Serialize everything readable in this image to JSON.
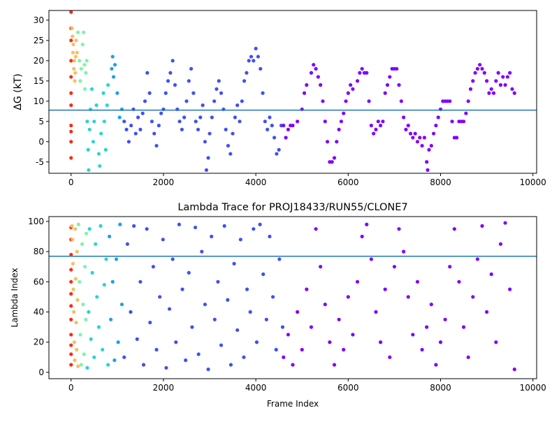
{
  "chart_data": [
    {
      "type": "scatter",
      "y_label": "ΔG (kT)",
      "xlim": [
        -480,
        10080
      ],
      "ylim": [
        -7.8,
        32.4
      ],
      "xticks": [
        0,
        2000,
        4000,
        6000,
        8000,
        10000
      ],
      "yticks": [
        -5,
        0,
        5,
        10,
        15,
        20,
        25,
        30
      ],
      "hline": {
        "value": 7.8,
        "color": "#1f77b4"
      },
      "series": [
        {
          "color": "#ff2a14",
          "x": [
            0,
            0,
            0,
            0,
            0,
            0,
            0,
            0,
            0,
            0,
            0
          ],
          "values": [
            32,
            28,
            25,
            20,
            16,
            12,
            9,
            4,
            2.5,
            0,
            -4
          ]
        },
        {
          "color": "#f5c060",
          "x": [
            20,
            30,
            40,
            50,
            60,
            70,
            80,
            90,
            100,
            110,
            130
          ],
          "values": [
            28,
            26,
            22,
            24,
            18,
            20,
            15,
            17,
            21,
            25,
            22
          ]
        },
        {
          "color": "#7ef5a8",
          "x": [
            150,
            180,
            200,
            220,
            250,
            270,
            290,
            300,
            320,
            340
          ],
          "values": [
            27,
            20,
            15,
            18,
            24,
            27,
            19,
            13,
            17,
            20
          ]
        },
        {
          "color": "#2ad4d4",
          "x": [
            350,
            370,
            380,
            400,
            420,
            450,
            480,
            500,
            550,
            600,
            620,
            650,
            700,
            720,
            750,
            780,
            800
          ],
          "values": [
            5,
            -2,
            -7,
            3,
            8,
            13,
            0,
            5,
            9,
            -3,
            -6,
            2,
            12,
            5,
            -2,
            9,
            14
          ]
        },
        {
          "color": "#1ea0e8",
          "x": [
            880,
            900,
            920,
            950,
            1000,
            1050,
            1100
          ],
          "values": [
            18,
            21,
            16,
            19,
            12,
            6,
            8
          ]
        },
        {
          "color": "#4050f5",
          "x": [
            1150,
            1200,
            1250,
            1300,
            1350,
            1400,
            1450,
            1500,
            1550,
            1600,
            1650,
            1700,
            1750,
            1800,
            1850,
            1900,
            1950,
            2000,
            2050,
            2100,
            2150,
            2200,
            2250,
            2300,
            2350,
            2400,
            2450,
            2500,
            2550,
            2600,
            2650,
            2700,
            2750,
            2800,
            2850,
            2900,
            2930,
            2970,
            3000,
            3050,
            3100,
            3150,
            3200,
            3250,
            3300,
            3350,
            3400,
            3450,
            3500,
            3550,
            3600,
            3650,
            3700,
            3750,
            3800,
            3850,
            3900,
            3950,
            4000,
            4050,
            4100,
            4150,
            4200,
            4250,
            4300,
            4350,
            4400,
            4450,
            4500,
            4550
          ],
          "values": [
            5,
            3,
            0,
            4,
            8,
            2,
            6,
            3,
            7,
            10,
            17,
            12,
            5,
            2,
            -1,
            4,
            7,
            8,
            12,
            15,
            17,
            20,
            14,
            8,
            5,
            3,
            6,
            10,
            15,
            18,
            12,
            5,
            3,
            6,
            9,
            0,
            -7,
            -4,
            2,
            6,
            10,
            13,
            15,
            12,
            8,
            3,
            -1,
            -3,
            2,
            6,
            9,
            5,
            10,
            15,
            17,
            20,
            21,
            20,
            23,
            21,
            18,
            12,
            5,
            3,
            6,
            4,
            1,
            -3,
            -2,
            4
          ]
        },
        {
          "color": "#8000ff",
          "x": [
            4600,
            4650,
            4700,
            4750,
            4800,
            4900,
            5000,
            5050,
            5100,
            5200,
            5250,
            5300,
            5350,
            5400,
            5450,
            5500,
            5550,
            5600,
            5650,
            5700,
            5750,
            5800,
            5850,
            5900,
            5950,
            6000,
            6050,
            6100,
            6200,
            6250,
            6300,
            6350,
            6400,
            6450,
            6500,
            6550,
            6600,
            6650,
            6700,
            6750,
            6800,
            6850,
            6900,
            6950,
            7000,
            7050,
            7100,
            7150,
            7200,
            7250,
            7300,
            7350,
            7400,
            7450,
            7500,
            7550,
            7600,
            7650,
            7700,
            7720,
            7750,
            7800,
            7850,
            7900,
            7950,
            8000,
            8050,
            8100,
            8150,
            8200,
            8250,
            8300,
            8350,
            8400,
            8450,
            8500,
            8550,
            8600,
            8650,
            8700,
            8750,
            8800,
            8850,
            8900,
            8950,
            9000,
            9050,
            9100,
            9150,
            9200,
            9250,
            9300,
            9350,
            9400,
            9450,
            9500,
            9550,
            9600
          ],
          "values": [
            4,
            1,
            3,
            4,
            4,
            5,
            8,
            12,
            14,
            17,
            19,
            18,
            16,
            14,
            10,
            5,
            0,
            -5,
            -5,
            -4,
            0,
            3,
            5,
            7,
            10,
            12,
            14,
            13,
            15,
            17,
            18,
            17,
            17,
            10,
            4,
            2,
            3,
            5,
            4,
            5,
            12,
            14,
            16,
            18,
            18,
            18,
            14,
            10,
            6,
            3,
            4,
            2,
            1,
            2,
            0,
            1,
            -1,
            1,
            -5,
            -7,
            -2,
            -1,
            2,
            4,
            6,
            8,
            10,
            10,
            10,
            10,
            5,
            1,
            1,
            5,
            5,
            5,
            7,
            10,
            13,
            15,
            17,
            18,
            19,
            18,
            17,
            15,
            12,
            13,
            12,
            15,
            17,
            14,
            16,
            14,
            16,
            17,
            13,
            12
          ]
        }
      ]
    },
    {
      "type": "scatter",
      "title": "Lambda Trace for PROJ18433/RUN55/CLONE7",
      "x_label": "Frame Index",
      "y_label": "Lambda Index",
      "xlim": [
        -480,
        10080
      ],
      "ylim": [
        -4.2,
        103.2
      ],
      "xticks": [
        0,
        2000,
        4000,
        6000,
        8000,
        10000
      ],
      "yticks": [
        0,
        20,
        40,
        60,
        80,
        100
      ],
      "hline": {
        "value": 76.9,
        "color": "#1f77b4"
      },
      "series": [
        {
          "color": "#ff2a14",
          "x": [
            0,
            0,
            0,
            0,
            0,
            0,
            0,
            0,
            0,
            0,
            0,
            0
          ],
          "values": [
            5,
            12,
            18,
            25,
            35,
            44,
            52,
            60,
            68,
            78,
            88,
            96
          ]
        },
        {
          "color": "#f5c060",
          "x": [
            20,
            30,
            40,
            50,
            60,
            70,
            80,
            90,
            100,
            110,
            120,
            130,
            140,
            150
          ],
          "values": [
            97,
            88,
            72,
            55,
            40,
            20,
            8,
            95,
            62,
            33,
            15,
            80,
            48,
            4
          ]
        },
        {
          "color": "#7ef5a8",
          "x": [
            160,
            180,
            200,
            220,
            240,
            260,
            280,
            300,
            320,
            330
          ],
          "values": [
            98,
            60,
            25,
            5,
            85,
            45,
            12,
            70,
            35,
            92
          ]
        },
        {
          "color": "#2ad4d4",
          "x": [
            350,
            380,
            400,
            430,
            460,
            500,
            530,
            560,
            600,
            640,
            680,
            720,
            760,
            800
          ],
          "values": [
            3,
            40,
            95,
            22,
            66,
            10,
            85,
            50,
            30,
            97,
            15,
            58,
            75,
            5
          ]
        },
        {
          "color": "#1ea0e8",
          "x": [
            830,
            860,
            900,
            940,
            980,
            1020,
            1060,
            1100
          ],
          "values": [
            90,
            35,
            60,
            8,
            75,
            20,
            98,
            45
          ]
        },
        {
          "color": "#4050f5",
          "x": [
            1150,
            1220,
            1290,
            1360,
            1430,
            1500,
            1570,
            1640,
            1710,
            1780,
            1850,
            1920,
            1990,
            2060,
            2130,
            2200,
            2270,
            2340,
            2410,
            2480,
            2550,
            2620,
            2690,
            2760,
            2830,
            2900,
            2970,
            3040,
            3110,
            3180,
            3250,
            3320,
            3390,
            3460,
            3530,
            3600,
            3670,
            3740,
            3810,
            3880,
            3950,
            4020,
            4090,
            4160,
            4230,
            4300,
            4370,
            4440,
            4510,
            4580
          ],
          "values": [
            10,
            85,
            40,
            97,
            22,
            60,
            5,
            95,
            33,
            70,
            15,
            50,
            88,
            3,
            42,
            75,
            20,
            98,
            55,
            8,
            66,
            30,
            96,
            12,
            80,
            45,
            2,
            90,
            35,
            60,
            18,
            97,
            48,
            5,
            72,
            28,
            88,
            10,
            55,
            40,
            95,
            20,
            98,
            65,
            35,
            90,
            50,
            15,
            75,
            30
          ]
        },
        {
          "color": "#8000ff",
          "x": [
            4600,
            4700,
            4800,
            4900,
            5000,
            5100,
            5200,
            5300,
            5400,
            5500,
            5600,
            5700,
            5800,
            5900,
            6000,
            6100,
            6200,
            6300,
            6400,
            6500,
            6600,
            6700,
            6800,
            6900,
            7000,
            7100,
            7200,
            7300,
            7400,
            7500,
            7600,
            7700,
            7800,
            7900,
            8000,
            8100,
            8200,
            8300,
            8400,
            8500,
            8600,
            8700,
            8800,
            8900,
            9000,
            9100,
            9200,
            9300,
            9400,
            9500,
            9600
          ],
          "values": [
            10,
            25,
            5,
            40,
            15,
            55,
            30,
            95,
            70,
            45,
            20,
            5,
            35,
            15,
            50,
            25,
            60,
            90,
            98,
            75,
            40,
            20,
            55,
            10,
            70,
            95,
            80,
            50,
            25,
            60,
            15,
            30,
            45,
            5,
            20,
            35,
            70,
            95,
            60,
            30,
            10,
            50,
            75,
            97,
            40,
            65,
            20,
            85,
            99,
            55,
            2
          ]
        }
      ]
    }
  ]
}
